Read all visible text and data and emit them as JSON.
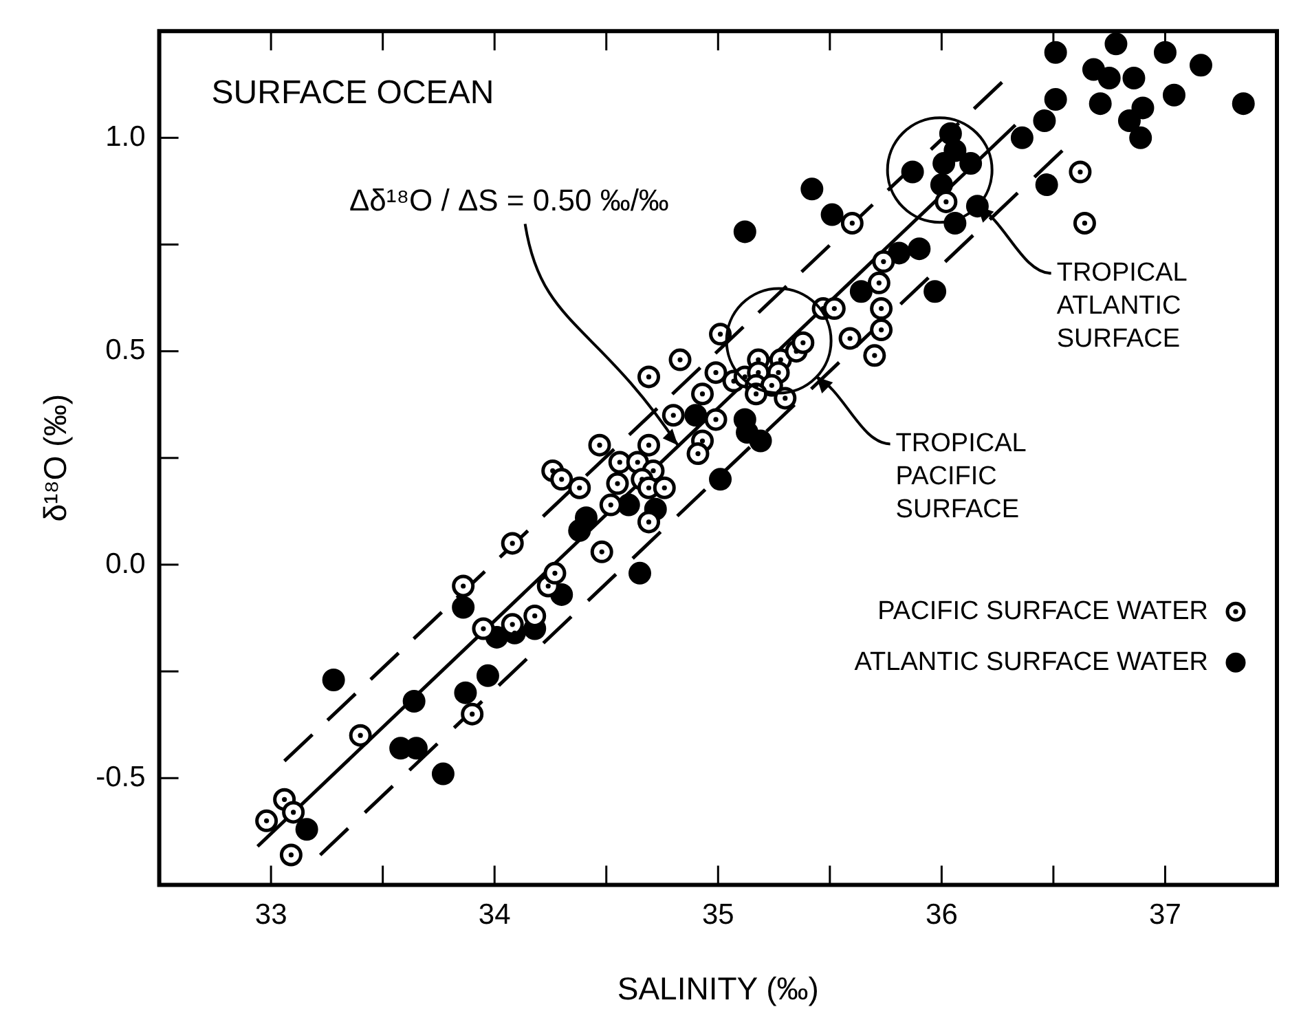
{
  "chart_data": {
    "type": "scatter",
    "title": "SURFACE OCEAN",
    "xlabel": "SALINITY (‰)",
    "ylabel": "δ¹⁸O (‰)",
    "xlim": [
      32.5,
      37.5
    ],
    "ylim": [
      -0.75,
      1.25
    ],
    "xticks": [
      33,
      {
        "value": 33.5,
        "label": null
      },
      34,
      {
        "value": 34.5,
        "label": null
      },
      35,
      {
        "value": 35.5,
        "label": null
      },
      36,
      {
        "value": 36.5,
        "label": null
      },
      37
    ],
    "yticks": [
      {
        "value": -0.5,
        "label": "-0.5"
      },
      {
        "value": -0.25,
        "label": null
      },
      {
        "value": 0,
        "label": "0.0"
      },
      {
        "value": 0.25,
        "label": null
      },
      0.5,
      {
        "value": 0.75,
        "label": null
      },
      {
        "value": 1,
        "label": "1.0"
      }
    ],
    "legend": "right",
    "annotations": [
      {
        "text": "Δδ¹⁸O / ΔS = 0.50 ‰/‰",
        "x": 34.82,
        "y": 0.28
      },
      {
        "text": "TROPICAL ATLANTIC SURFACE",
        "x": 36.16,
        "y": 0.84
      },
      {
        "text": "TROPICAL PACIFIC SURFACE",
        "x": 35.44,
        "y": 0.44
      }
    ],
    "series": [
      {
        "name": "PACIFIC SURFACE WATER",
        "color": "#ffffff",
        "marker": "circle",
        "x": [
          32.98,
          33.06,
          33.1,
          33.09,
          33.4,
          33.9,
          33.95,
          34.08,
          34.18,
          33.86,
          34.24,
          34.27,
          34.48,
          34.08,
          34.26,
          34.3,
          34.38,
          34.47,
          34.55,
          34.56,
          34.64,
          34.71,
          34.66,
          34.69,
          34.76,
          34.52,
          34.69,
          34.69,
          34.8,
          34.93,
          34.91,
          34.99,
          34.69,
          34.83,
          34.99,
          34.93,
          35.07,
          35.01,
          35.18,
          35.28,
          35.12,
          35.18,
          35.27,
          35.17,
          35.24,
          35.17,
          35.3,
          35.35,
          35.38,
          35.59,
          35.7,
          35.73,
          35.73,
          35.72,
          35.47,
          35.52,
          35.6,
          36.02,
          36.62,
          36.64,
          35.74
        ],
        "values": [
          -0.6,
          -0.55,
          -0.58,
          -0.68,
          -0.4,
          -0.35,
          -0.15,
          -0.14,
          -0.12,
          -0.05,
          -0.05,
          -0.02,
          0.03,
          0.05,
          0.22,
          0.2,
          0.18,
          0.28,
          0.19,
          0.24,
          0.24,
          0.22,
          0.2,
          0.18,
          0.18,
          0.14,
          0.1,
          0.28,
          0.35,
          0.29,
          0.26,
          0.34,
          0.44,
          0.48,
          0.45,
          0.4,
          0.43,
          0.54,
          0.48,
          0.48,
          0.44,
          0.45,
          0.45,
          0.42,
          0.42,
          0.4,
          0.39,
          0.5,
          0.52,
          0.53,
          0.49,
          0.55,
          0.6,
          0.66,
          0.6,
          0.6,
          0.8,
          0.85,
          0.92,
          0.8,
          0.71
        ]
      },
      {
        "name": "ATLANTIC SURFACE WATER",
        "color": "#000000",
        "marker": "circle",
        "x": [
          33.16,
          33.28,
          33.64,
          33.58,
          33.65,
          33.77,
          33.87,
          33.97,
          33.86,
          34.01,
          34.09,
          34.18,
          34.3,
          34.65,
          34.9,
          35.12,
          35.13,
          35.19,
          35.01,
          34.41,
          34.38,
          34.6,
          34.72,
          35.64,
          35.97,
          35.12,
          35.42,
          35.51,
          35.87,
          36.04,
          36.06,
          36.01,
          36.13,
          36.0,
          36.16,
          36.06,
          35.81,
          35.9,
          36.47,
          36.36,
          36.46,
          36.51,
          36.51,
          36.68,
          36.75,
          36.86,
          36.78,
          37.0,
          37.16,
          36.71,
          36.9,
          36.84,
          36.89,
          37.04,
          37.35
        ],
        "values": [
          -0.62,
          -0.27,
          -0.32,
          -0.43,
          -0.43,
          -0.49,
          -0.3,
          -0.26,
          -0.1,
          -0.17,
          -0.16,
          -0.15,
          -0.07,
          -0.02,
          0.35,
          0.34,
          0.31,
          0.29,
          0.2,
          0.11,
          0.08,
          0.14,
          0.13,
          0.64,
          0.64,
          0.78,
          0.88,
          0.82,
          0.92,
          1.01,
          0.97,
          0.94,
          0.94,
          0.89,
          0.84,
          0.8,
          0.73,
          0.74,
          0.89,
          1.0,
          1.04,
          1.09,
          1.2,
          1.16,
          1.14,
          1.14,
          1.22,
          1.2,
          1.17,
          1.08,
          1.07,
          1.04,
          1.0,
          1.1,
          1.08
        ]
      },
      {
        "type": "line",
        "color": "#000000",
        "line_style": "solid",
        "marker": "none",
        "x": [
          32.94,
          36.33
        ],
        "values": [
          -0.66,
          1.03
        ]
      },
      {
        "type": "line",
        "color": "#000000",
        "line_style": "dashed",
        "marker": "none",
        "x": [
          33.06,
          36.27
        ],
        "values": [
          -0.46,
          1.13
        ]
      },
      {
        "type": "line",
        "color": "#000000",
        "line_style": "dashed",
        "marker": "none",
        "x": [
          33.22,
          36.54
        ],
        "values": [
          -0.68,
          0.97
        ]
      }
    ]
  }
}
